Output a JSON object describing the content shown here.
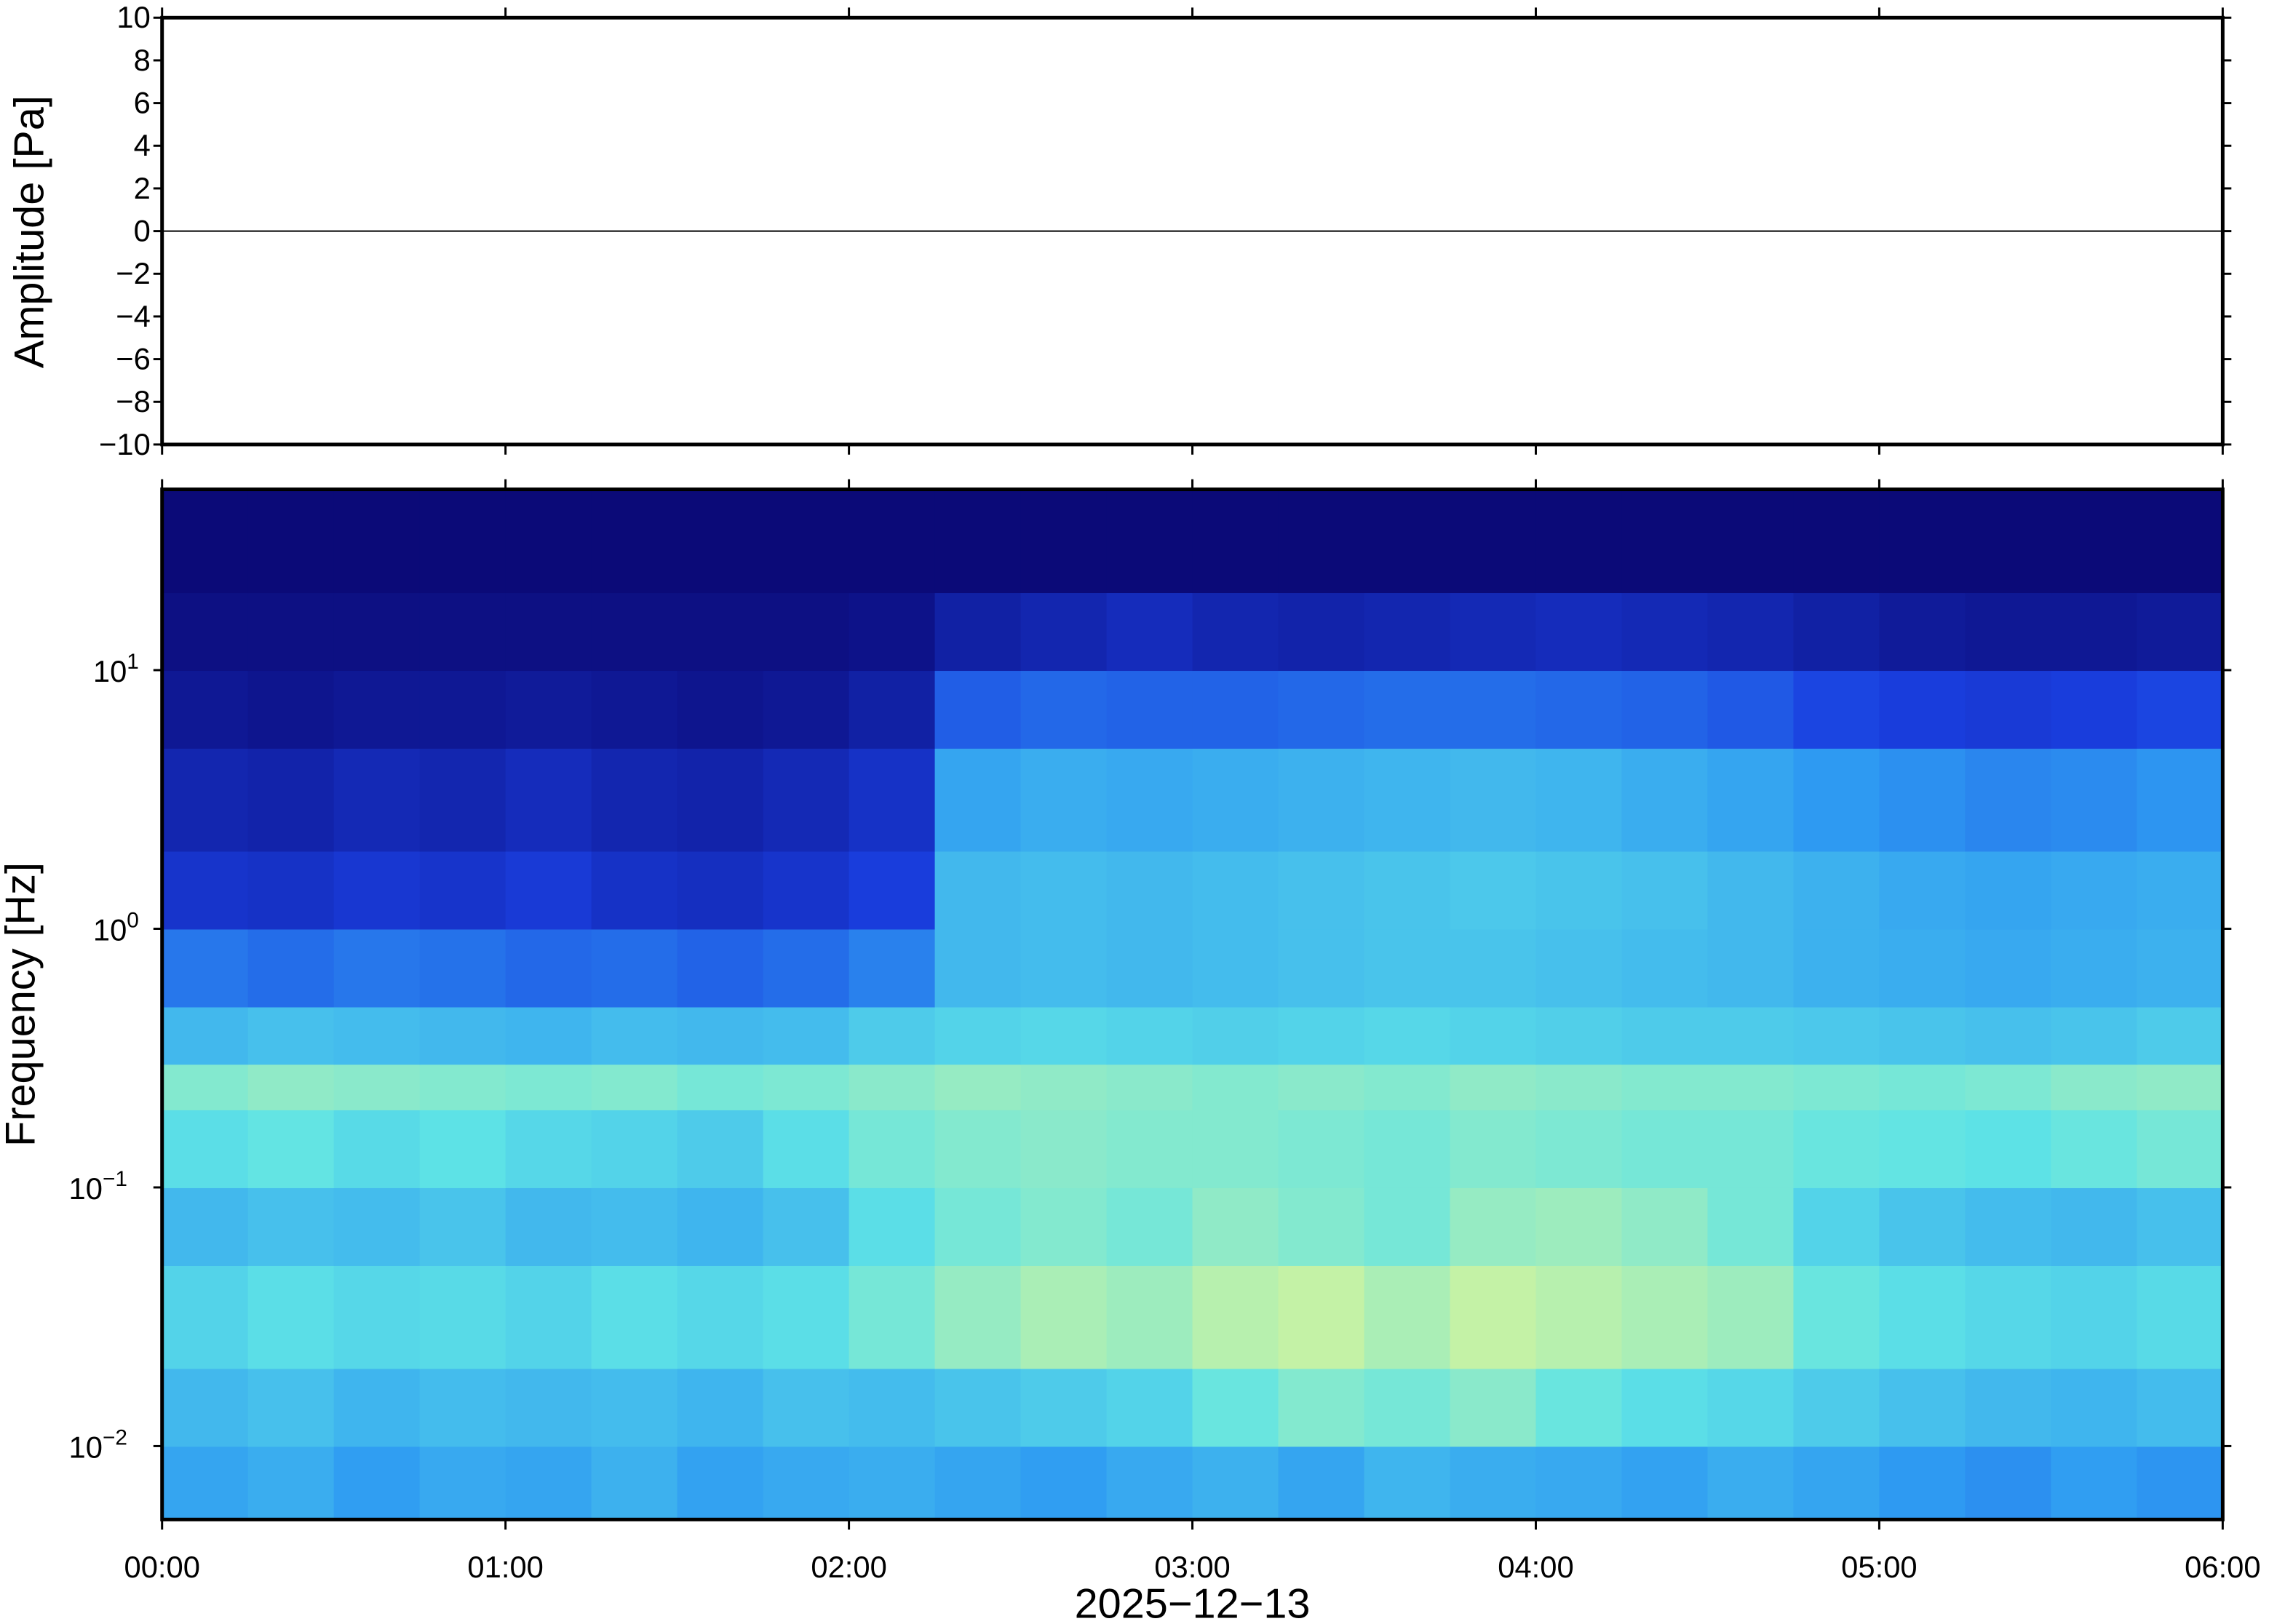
{
  "chart_data": [
    {
      "type": "line",
      "ylabel": "Amplitude [Pa]",
      "xlim": [
        0,
        6
      ],
      "xticks": [
        0,
        1,
        2,
        3,
        4,
        5,
        6
      ],
      "ylim": [
        -10,
        10
      ],
      "yticks": [
        {
          "value": -10,
          "label": "−10"
        },
        {
          "value": -8,
          "label": "−8"
        },
        {
          "value": -6,
          "label": "−6"
        },
        {
          "value": -4,
          "label": "−4"
        },
        {
          "value": -2,
          "label": "−2"
        },
        0,
        2,
        4,
        6,
        8,
        10
      ],
      "series": [
        {
          "color": "#000000",
          "x": [
            0,
            6
          ],
          "values": [
            0,
            0
          ]
        }
      ]
    },
    {
      "type": "heatmap",
      "ylabel": "Frequency [Hz]",
      "xlabel": "2025−12−13",
      "log_y": true,
      "xlim": [
        0,
        6
      ],
      "xticks": [
        {
          "value": 0,
          "label": "00:00"
        },
        {
          "value": 1,
          "label": "01:00"
        },
        {
          "value": 2,
          "label": "02:00"
        },
        {
          "value": 3,
          "label": "03:00"
        },
        {
          "value": 4,
          "label": "04:00"
        },
        {
          "value": 5,
          "label": "05:00"
        },
        {
          "value": 6,
          "label": "06:00"
        }
      ],
      "ylim": [
        0.0052,
        50
      ],
      "yticks": [
        {
          "value": 0.01,
          "label": "10",
          "exponent": "−2"
        },
        {
          "value": 0.1,
          "label": "10",
          "exponent": "−1"
        },
        {
          "value": 1,
          "label": "10",
          "exponent": "0"
        },
        {
          "value": 10,
          "label": "10",
          "exponent": "1"
        }
      ],
      "zlim": [
        0,
        0.75
      ],
      "colormap": [
        "#0b0a78",
        "#1a3fe0",
        "#2f9cf2",
        "#5ee3e6",
        "#d7f59a"
      ],
      "x_bins": [
        0,
        0.25,
        0.5,
        0.75,
        1,
        1.25,
        1.5,
        1.75,
        2,
        2.25,
        2.5,
        2.75,
        3,
        3.25,
        3.5,
        3.75,
        4,
        4.25,
        4.5,
        4.75,
        5,
        5.25,
        5.5,
        5.75,
        6
      ],
      "y_bins": [
        0.0052,
        0.01,
        0.02,
        0.05,
        0.1,
        0.2,
        0.3,
        0.5,
        1,
        2,
        5,
        10,
        20,
        50
      ],
      "z": [
        [
          0.4,
          0.42,
          0.38,
          0.41,
          0.4,
          0.43,
          0.39,
          0.41,
          0.42,
          0.4,
          0.38,
          0.41,
          0.43,
          0.4,
          0.44,
          0.42,
          0.41,
          0.39,
          0.42,
          0.4,
          0.37,
          0.35,
          0.38,
          0.36
        ],
        [
          0.45,
          0.47,
          0.44,
          0.46,
          0.45,
          0.46,
          0.44,
          0.47,
          0.46,
          0.48,
          0.5,
          0.52,
          0.58,
          0.62,
          0.6,
          0.63,
          0.58,
          0.55,
          0.53,
          0.5,
          0.47,
          0.45,
          0.44,
          0.46
        ],
        [
          0.52,
          0.55,
          0.53,
          0.54,
          0.52,
          0.55,
          0.53,
          0.55,
          0.6,
          0.65,
          0.68,
          0.66,
          0.7,
          0.72,
          0.68,
          0.72,
          0.7,
          0.68,
          0.66,
          0.58,
          0.55,
          0.53,
          0.52,
          0.54
        ],
        [
          0.45,
          0.47,
          0.46,
          0.48,
          0.45,
          0.46,
          0.44,
          0.47,
          0.55,
          0.6,
          0.62,
          0.6,
          0.64,
          0.62,
          0.6,
          0.65,
          0.66,
          0.64,
          0.6,
          0.52,
          0.48,
          0.46,
          0.45,
          0.47
        ],
        [
          0.55,
          0.57,
          0.54,
          0.56,
          0.53,
          0.52,
          0.5,
          0.55,
          0.6,
          0.62,
          0.63,
          0.62,
          0.62,
          0.61,
          0.6,
          0.62,
          0.61,
          0.6,
          0.6,
          0.58,
          0.57,
          0.56,
          0.58,
          0.6
        ],
        [
          0.62,
          0.64,
          0.63,
          0.62,
          0.61,
          0.62,
          0.6,
          0.61,
          0.63,
          0.65,
          0.64,
          0.63,
          0.62,
          0.63,
          0.62,
          0.64,
          0.63,
          0.62,
          0.62,
          0.61,
          0.6,
          0.61,
          0.63,
          0.64
        ],
        [
          0.45,
          0.47,
          0.46,
          0.45,
          0.44,
          0.46,
          0.45,
          0.46,
          0.5,
          0.52,
          0.53,
          0.52,
          0.51,
          0.52,
          0.53,
          0.52,
          0.51,
          0.5,
          0.5,
          0.49,
          0.48,
          0.47,
          0.48,
          0.5
        ],
        [
          0.3,
          0.28,
          0.3,
          0.29,
          0.27,
          0.28,
          0.26,
          0.28,
          0.32,
          0.45,
          0.46,
          0.45,
          0.46,
          0.47,
          0.48,
          0.48,
          0.47,
          0.46,
          0.45,
          0.43,
          0.42,
          0.41,
          0.42,
          0.43
        ],
        [
          0.15,
          0.14,
          0.16,
          0.15,
          0.17,
          0.14,
          0.13,
          0.15,
          0.18,
          0.45,
          0.46,
          0.45,
          0.46,
          0.47,
          0.48,
          0.49,
          0.48,
          0.47,
          0.45,
          0.43,
          0.41,
          0.4,
          0.41,
          0.42
        ],
        [
          0.1,
          0.09,
          0.11,
          0.1,
          0.12,
          0.1,
          0.09,
          0.11,
          0.14,
          0.4,
          0.42,
          0.41,
          0.42,
          0.43,
          0.44,
          0.45,
          0.44,
          0.42,
          0.4,
          0.37,
          0.35,
          0.33,
          0.34,
          0.36
        ],
        [
          0.05,
          0.04,
          0.05,
          0.05,
          0.06,
          0.05,
          0.04,
          0.05,
          0.08,
          0.25,
          0.27,
          0.26,
          0.26,
          0.27,
          0.28,
          0.28,
          0.27,
          0.26,
          0.24,
          0.2,
          0.18,
          0.17,
          0.18,
          0.2
        ],
        [
          0.02,
          0.02,
          0.02,
          0.02,
          0.02,
          0.02,
          0.02,
          0.02,
          0.03,
          0.08,
          0.1,
          0.12,
          0.1,
          0.09,
          0.1,
          0.11,
          0.12,
          0.11,
          0.1,
          0.08,
          0.06,
          0.05,
          0.05,
          0.06
        ],
        [
          0,
          0,
          0,
          0,
          0,
          0,
          0,
          0,
          0,
          0,
          0,
          0,
          0,
          0,
          0,
          0,
          0,
          0,
          0,
          0,
          0,
          0,
          0,
          0
        ]
      ]
    }
  ]
}
